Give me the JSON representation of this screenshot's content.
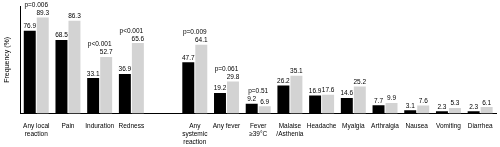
{
  "chart_data": {
    "type": "bar",
    "y_label": "Frequency (%)",
    "categories": [
      "Any local reaction",
      "Pain",
      "Induration",
      "Redness",
      null,
      "Any systemic reaction",
      "Any fever",
      "Fever ≥39°C",
      "Malaise /Asthenia",
      "Headache",
      "Myalgia",
      "Arthralgia",
      "Nausea",
      "Vomiting",
      "Diarrhea"
    ],
    "series": [
      {
        "color": "#000000",
        "values": [
          76.9,
          68.5,
          33.1,
          36.9,
          null,
          47.7,
          19.2,
          9.2,
          26.2,
          16.9,
          14.6,
          7.7,
          3.1,
          2.3,
          2.3
        ]
      },
      {
        "color": "#d3d3d3",
        "values": [
          89.3,
          86.3,
          52.7,
          65.6,
          null,
          64.1,
          29.8,
          6.9,
          35.1,
          17.6,
          25.2,
          9.9,
          7.6,
          5.3,
          6.1
        ]
      }
    ],
    "ylim": [
      0,
      100
    ],
    "grid": false,
    "data_labels": true,
    "tick_labels": "x",
    "annotations": [
      {
        "text": "p=0.006",
        "category": "Any local reaction"
      },
      {
        "text": "p<0.001",
        "category": "Induration"
      },
      {
        "text": "p<0.001",
        "category": "Redness"
      },
      {
        "text": "p=0.009",
        "category": "Any systemic reaction"
      },
      {
        "text": "p=0.061",
        "category": "Any fever"
      },
      {
        "text": "p=0.51",
        "category": "Fever ≥39°C"
      }
    ]
  }
}
